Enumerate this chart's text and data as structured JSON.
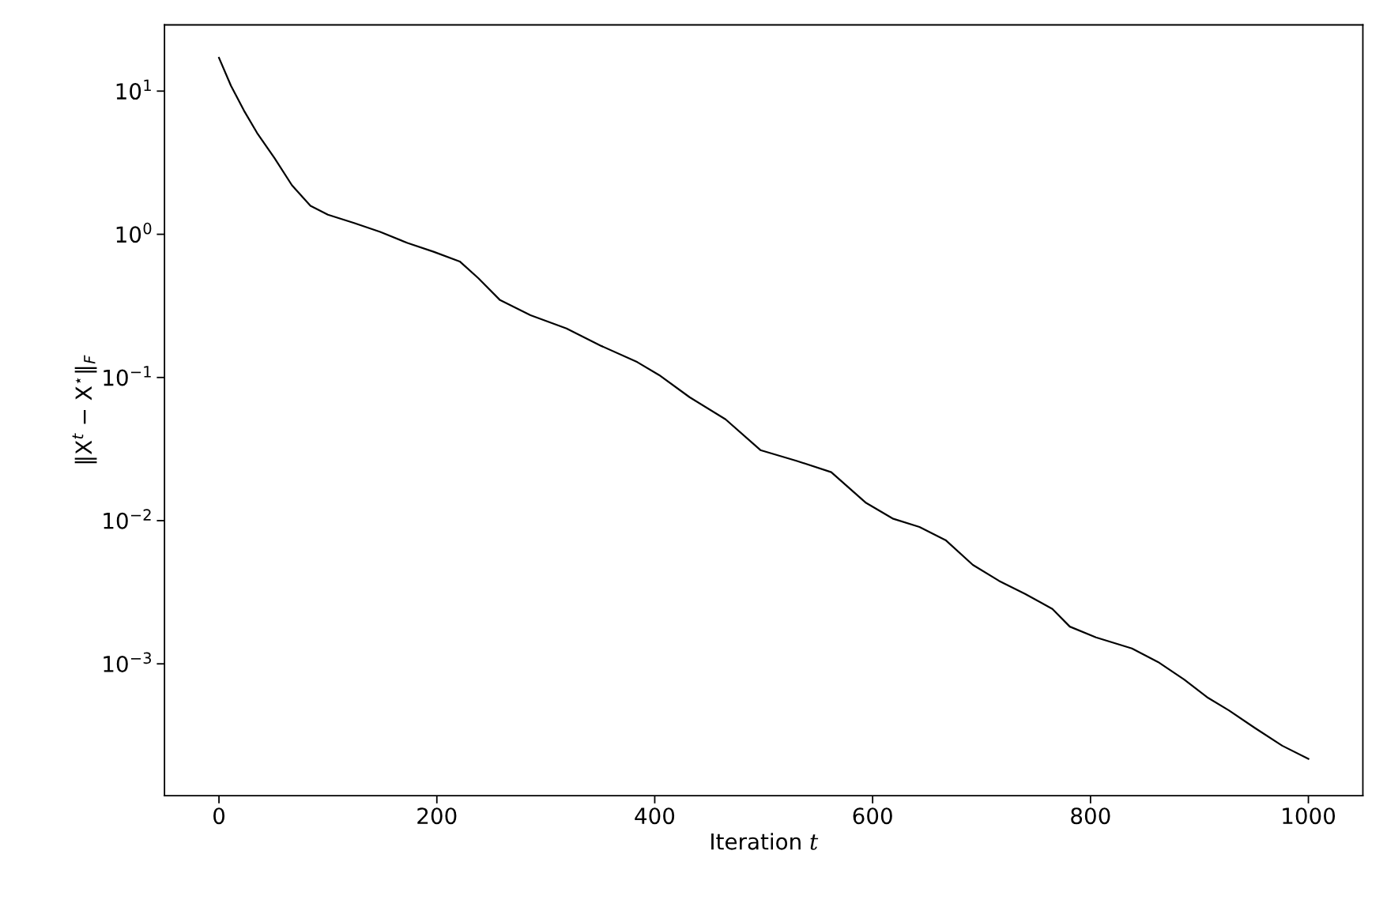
{
  "chart_data": {
    "type": "line",
    "xlabel": "Iteration 𝑡",
    "ylabel": "‖X$^{t}$ − X$^{⋆}$‖$_{F}$",
    "x": [
      0,
      11,
      23,
      35,
      51,
      67,
      84,
      100,
      124,
      148,
      173,
      197,
      221,
      238,
      258,
      286,
      319,
      351,
      384,
      404,
      432,
      465,
      497,
      530,
      562,
      594,
      619,
      643,
      667,
      692,
      716,
      740,
      765,
      781,
      805,
      838,
      862,
      886,
      907,
      927,
      951,
      976,
      1000
    ],
    "series": [
      {
        "color": "#000000",
        "values": [
          17.1,
          10.9,
          7.3,
          5.1,
          3.4,
          2.2,
          1.58,
          1.37,
          1.2,
          1.04,
          0.87,
          0.755,
          0.646,
          0.494,
          0.347,
          0.272,
          0.22,
          0.166,
          0.128,
          0.104,
          0.0728,
          0.051,
          0.0311,
          0.0262,
          0.0218,
          0.0133,
          0.0103,
          0.00904,
          0.00731,
          0.00491,
          0.0038,
          0.00308,
          0.00242,
          0.00182,
          0.00153,
          0.00128,
          0.00103,
          0.000776,
          0.000585,
          0.000473,
          0.000356,
          0.000268,
          0.000217
        ]
      }
    ],
    "log": "y",
    "xlim": [
      -50,
      1050
    ],
    "xticks": [
      0,
      200,
      400,
      600,
      800,
      1000
    ],
    "ylim": [
      0.00012,
      29
    ],
    "yticks": [
      {
        "value": 0.001,
        "label": "10$^{−3}$"
      },
      {
        "value": 0.01,
        "label": "10$^{−2}$"
      },
      {
        "value": 0.1,
        "label": "10$^{−1}$"
      },
      {
        "value": 1,
        "label": "10$^{0}$"
      },
      {
        "value": 10,
        "label": "10$^{1}$"
      }
    ],
    "grid": false,
    "legend": false,
    "marker": "none",
    "line_style": "solid"
  }
}
